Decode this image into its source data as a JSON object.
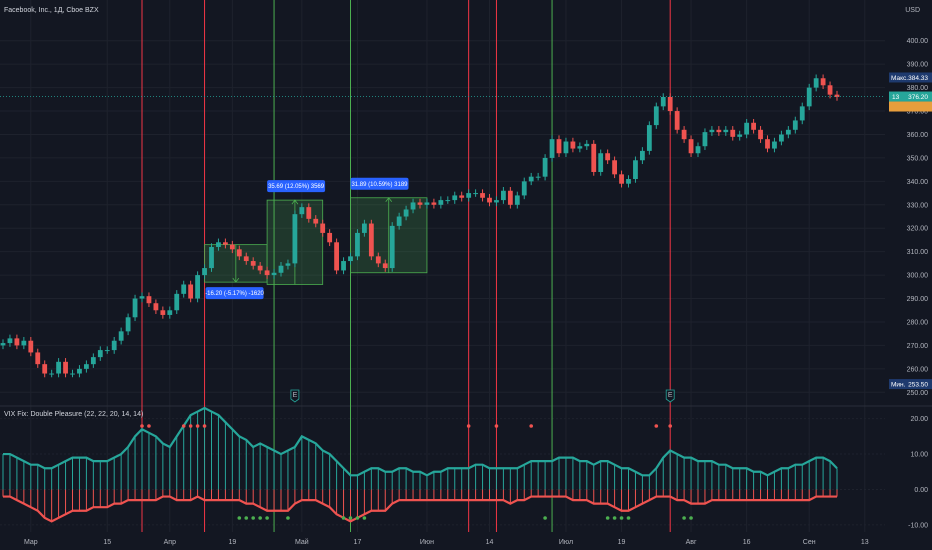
{
  "header": {
    "symbol_title": "Facebook, Inc., 1Д, Cboe BZX",
    "currency": "USD"
  },
  "indicator": {
    "title": "VIX Fix: Double Pleasure (22, 22, 20, 14, 14)"
  },
  "colors": {
    "background": "#131722",
    "grid": "#1e222d",
    "up": "#26a69a",
    "down": "#ef5350",
    "green_line": "#4caf50",
    "red_line": "#f23645",
    "label_blue": "#2962ff",
    "current_price": "#26a69a",
    "orange_tag": "#e89e3c"
  },
  "chart_data": [
    {
      "type": "candlestick",
      "price_scale": {
        "range": [
          245,
          408
        ],
        "ticks": [
          {
            "value": 250,
            "label": "250.00"
          },
          {
            "value": 260,
            "label": "260.00"
          },
          {
            "value": 270,
            "label": "270.00"
          },
          {
            "value": 280,
            "label": "280.00"
          },
          {
            "value": 290,
            "label": "290.00"
          },
          {
            "value": 300,
            "label": "300.00"
          },
          {
            "value": 310,
            "label": "310.00"
          },
          {
            "value": 320,
            "label": "320.00"
          },
          {
            "value": 330,
            "label": "330.00"
          },
          {
            "value": 340,
            "label": "340.00"
          },
          {
            "value": 350,
            "label": "350.00"
          },
          {
            "value": 360,
            "label": "360.00"
          },
          {
            "value": 370,
            "label": "370.00"
          },
          {
            "value": 380,
            "label": "380.00"
          },
          {
            "value": 390,
            "label": "390.00"
          },
          {
            "value": 400,
            "label": "400.00"
          }
        ]
      },
      "time_axis_labels": [
        {
          "index": 4,
          "label": "Мар"
        },
        {
          "index": 15,
          "label": "15"
        },
        {
          "index": 24,
          "label": "Апр"
        },
        {
          "index": 33,
          "label": "19"
        },
        {
          "index": 43,
          "label": "Май"
        },
        {
          "index": 51,
          "label": "17"
        },
        {
          "index": 61,
          "label": "Июн"
        },
        {
          "index": 70,
          "label": "14"
        },
        {
          "index": 81,
          "label": "Июл"
        },
        {
          "index": 89,
          "label": "19"
        },
        {
          "index": 99,
          "label": "Авг"
        },
        {
          "index": 107,
          "label": "16"
        },
        {
          "index": 116,
          "label": "Сен"
        },
        {
          "index": 124,
          "label": "13"
        }
      ],
      "grid": true,
      "markers": [
        {
          "label": "Макс.",
          "value": "384.33",
          "price": 384.33
        },
        {
          "label": "Мин.",
          "value": "253.50",
          "price": 253.5
        }
      ],
      "current_price": {
        "countdown": "13",
        "value": "376.20",
        "price": 376.2
      },
      "earnings_flags": [
        {
          "index": 42,
          "label": "E"
        },
        {
          "index": 96,
          "label": "E"
        }
      ],
      "green_lines": [
        39,
        50,
        79
      ],
      "red_lines": [
        20,
        29,
        67,
        71,
        96
      ],
      "measure_boxes": [
        {
          "start": 29,
          "end": 38,
          "top": 313,
          "bottom": 297,
          "label": "-16.20 (-5.17%) -1620",
          "direction": "down"
        },
        {
          "start": 38,
          "end": 46,
          "top": 332,
          "bottom": 296,
          "label": "35.69 (12.05%) 3569",
          "direction": "up"
        },
        {
          "start": 50,
          "end": 61,
          "top": 333,
          "bottom": 301,
          "label": "31.89 (10.59%) 3189",
          "direction": "up"
        }
      ],
      "candles_close": [
        271,
        273,
        270,
        272,
        267,
        262,
        258,
        258,
        263,
        258,
        258,
        260,
        262,
        265,
        268,
        268,
        272,
        276,
        282,
        290,
        291,
        288,
        285,
        283,
        285,
        292,
        296,
        290,
        300,
        303,
        312,
        314,
        313,
        311,
        308,
        306,
        304,
        302,
        300,
        301,
        304,
        305,
        326,
        329,
        324,
        322,
        318,
        314,
        302,
        306,
        308,
        318,
        322,
        308,
        305,
        303,
        321,
        325,
        328,
        331,
        330,
        331,
        330,
        332,
        332,
        334,
        333,
        335,
        335,
        333,
        331,
        332,
        336,
        330,
        334,
        340,
        342,
        342,
        350,
        358,
        352,
        357,
        354,
        355,
        356,
        344,
        352,
        349,
        343,
        339,
        341,
        349,
        353,
        364,
        372,
        376,
        370,
        362,
        358,
        352,
        355,
        361,
        362,
        361,
        362,
        359,
        360,
        365,
        362,
        358,
        354,
        357,
        360,
        362,
        366,
        372,
        380,
        384,
        381,
        377,
        376
      ]
    },
    {
      "type": "histogram",
      "title": "VIX Fix: Double Pleasure (22, 22, 20, 14, 14)",
      "value_scale": {
        "range": [
          -12,
          23
        ],
        "ticks": [
          {
            "value": -10,
            "label": "-10.00"
          },
          {
            "value": 0,
            "label": "0.00"
          },
          {
            "value": 10,
            "label": "10.00"
          },
          {
            "value": 20,
            "label": "20.00"
          }
        ]
      },
      "series": [
        {
          "name": "upper",
          "values": [
            10,
            10,
            9,
            8,
            7,
            7,
            6,
            6,
            7,
            8,
            9,
            9,
            9,
            8,
            8,
            8,
            9,
            10,
            12,
            15,
            17,
            16,
            15,
            13,
            12,
            15,
            18,
            21,
            22,
            23,
            22,
            21,
            19,
            17,
            15,
            14,
            12,
            13,
            12,
            11,
            10,
            11,
            12,
            15,
            14,
            13,
            11,
            10,
            8,
            6,
            4,
            4,
            5,
            6,
            6,
            5,
            5,
            6,
            6,
            5,
            5,
            4,
            5,
            5,
            6,
            6,
            6,
            6,
            7,
            7,
            6,
            6,
            6,
            6,
            6,
            7,
            8,
            8,
            8,
            8,
            9,
            9,
            9,
            8,
            8,
            7,
            8,
            8,
            7,
            6,
            6,
            5,
            4,
            4,
            6,
            9,
            11,
            10,
            9,
            9,
            8,
            8,
            8,
            7,
            7,
            6,
            6,
            6,
            5,
            5,
            4,
            5,
            6,
            6,
            7,
            7,
            8,
            9,
            9,
            8,
            6
          ]
        },
        {
          "name": "lower",
          "values": [
            -2,
            -2,
            -3,
            -4,
            -5,
            -6,
            -8,
            -9,
            -8,
            -7,
            -6,
            -6,
            -6,
            -5,
            -5,
            -5,
            -4,
            -4,
            -3,
            -3,
            -3,
            -3,
            -3,
            -2,
            -2,
            -3,
            -3,
            -3,
            -2,
            -3,
            -3,
            -3,
            -3,
            -3,
            -3,
            -4,
            -4,
            -5,
            -6,
            -6,
            -6,
            -6,
            -4,
            -3,
            -3,
            -3,
            -4,
            -5,
            -7,
            -8,
            -9,
            -8,
            -7,
            -6,
            -6,
            -6,
            -4,
            -3,
            -3,
            -3,
            -3,
            -3,
            -3,
            -3,
            -3,
            -3,
            -3,
            -3,
            -3,
            -3,
            -3,
            -3,
            -3,
            -4,
            -3,
            -3,
            -2,
            -2,
            -2,
            -2,
            -2,
            -2,
            -3,
            -3,
            -3,
            -4,
            -4,
            -4,
            -5,
            -6,
            -6,
            -5,
            -4,
            -3,
            -2,
            -2,
            -2,
            -3,
            -3,
            -4,
            -4,
            -4,
            -3,
            -3,
            -3,
            -3,
            -3,
            -3,
            -3,
            -3,
            -3,
            -3,
            -3,
            -3,
            -3,
            -3,
            -3,
            -2,
            -2,
            -2,
            -2
          ]
        }
      ],
      "signal_dots_top": [
        20,
        21,
        26,
        27,
        28,
        29,
        67,
        71,
        76,
        94,
        96
      ],
      "signal_dots_bottom": [
        34,
        35,
        36,
        37,
        38,
        41,
        49,
        50,
        51,
        52,
        78,
        87,
        88,
        89,
        90,
        98,
        99
      ]
    }
  ]
}
